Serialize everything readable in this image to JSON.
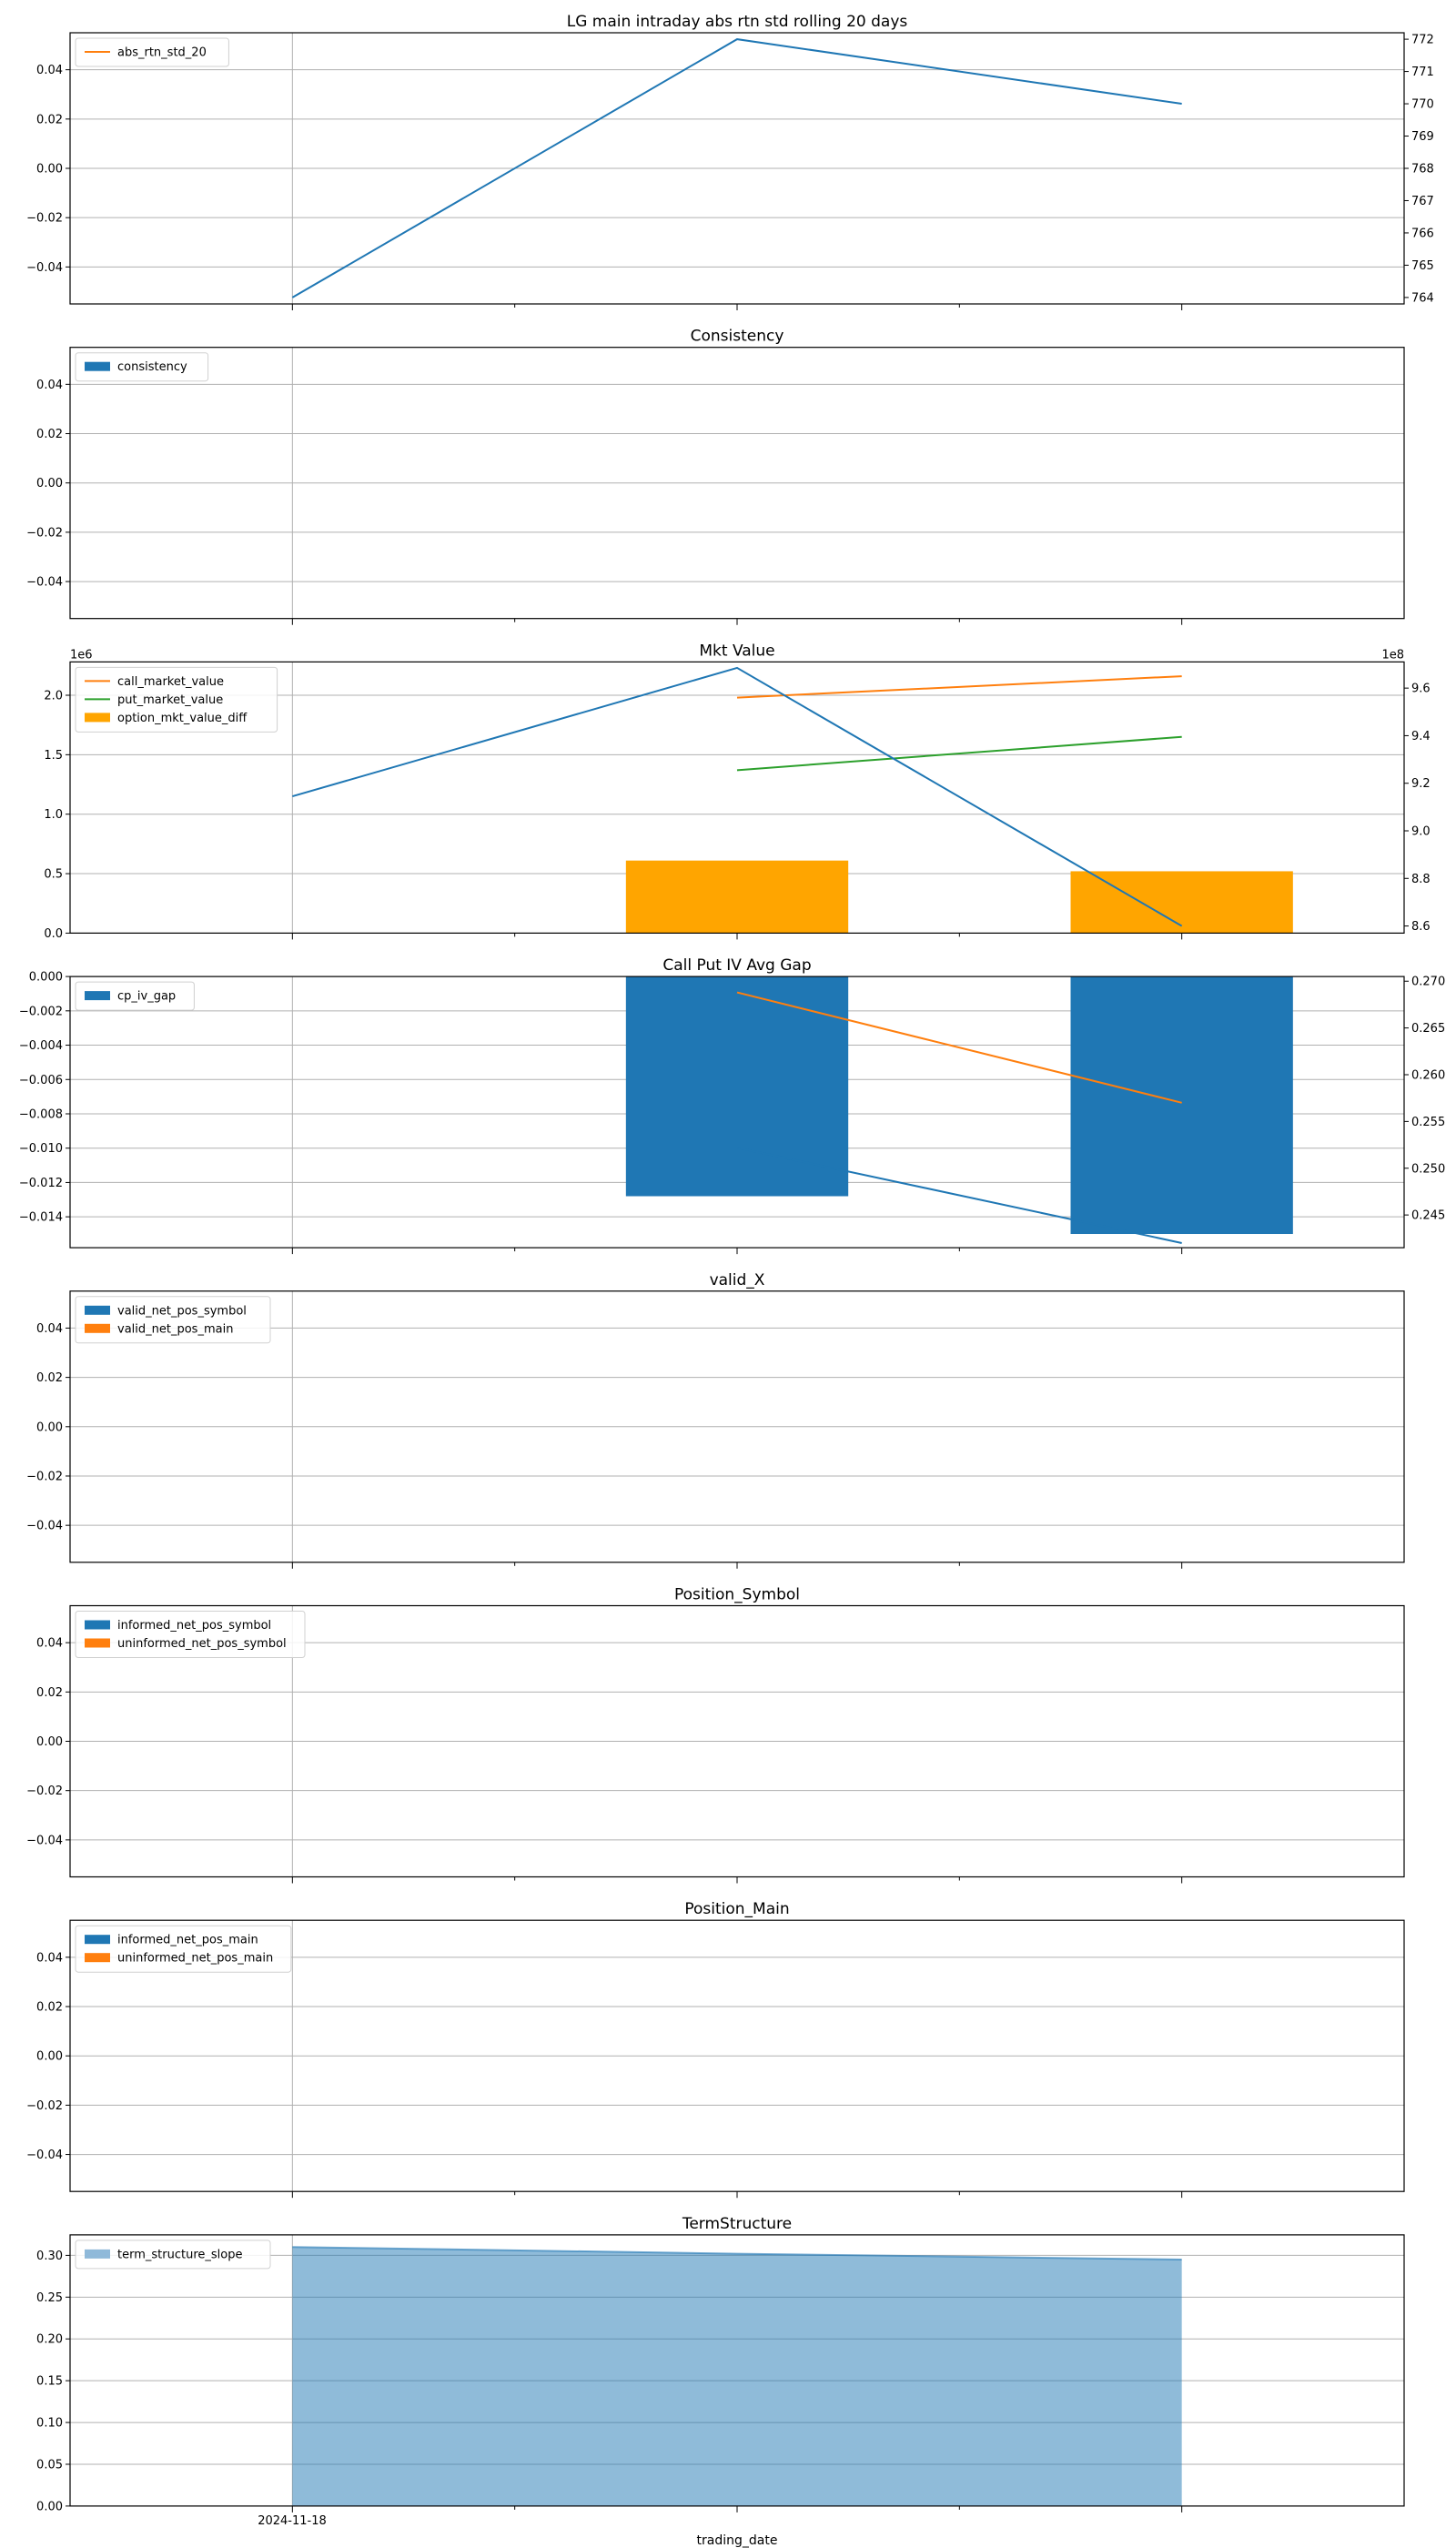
{
  "figure": {
    "xlabel": "trading_date",
    "x_tick_label": "2024-11-18"
  },
  "chart_data": [
    {
      "type": "line",
      "title": "LG main intraday abs rtn std rolling 20 days",
      "x": [
        0,
        1,
        2
      ],
      "y_left": {
        "ylim": [
          -0.055,
          0.055
        ],
        "ticks": [
          0.04,
          0.02,
          0.0,
          -0.02,
          -0.04
        ],
        "tick_labels": [
          "0.04",
          "0.02",
          "0.00",
          "−0.02",
          "−0.04"
        ]
      },
      "y_right": {
        "ylim": [
          763.8,
          772.2
        ],
        "ticks": [
          772,
          771,
          770,
          769,
          768,
          767,
          766,
          765,
          764
        ],
        "tick_labels": [
          "772",
          "771",
          "770",
          "769",
          "768",
          "767",
          "766",
          "765",
          "764"
        ]
      },
      "series": [
        {
          "name": "",
          "kind": "line",
          "axis": "right",
          "color": "#1f77b4",
          "x": [
            0,
            1,
            2
          ],
          "values": [
            764,
            772,
            770
          ]
        }
      ],
      "legend": [
        {
          "label": "abs_rtn_std_20",
          "kind": "line",
          "color": "#ff7f0e"
        }
      ],
      "legend_position": "upper left",
      "grid": true
    },
    {
      "type": "bar",
      "title": "Consistency",
      "y_left": {
        "ylim": [
          -0.055,
          0.055
        ],
        "ticks": [
          0.04,
          0.02,
          0.0,
          -0.02,
          -0.04
        ],
        "tick_labels": [
          "0.04",
          "0.02",
          "0.00",
          "−0.02",
          "−0.04"
        ]
      },
      "series": [],
      "legend": [
        {
          "label": "consistency",
          "kind": "bar",
          "color": "#1f77b4"
        }
      ],
      "legend_position": "upper left",
      "grid": true
    },
    {
      "type": "bar",
      "title": "Mkt Value",
      "y_left": {
        "ylim": [
          0,
          2.28
        ],
        "ticks": [
          2.0,
          1.5,
          1.0,
          0.5,
          0.0
        ],
        "tick_labels": [
          "2.0",
          "1.5",
          "1.0",
          "0.5",
          "0.0"
        ],
        "offset_label": "1e6"
      },
      "y_right": {
        "ylim": [
          8.57,
          9.71
        ],
        "ticks": [
          9.6,
          9.4,
          9.2,
          9.0,
          8.8,
          8.6
        ],
        "tick_labels": [
          "9.6",
          "9.4",
          "9.2",
          "9.0",
          "8.8",
          "8.6"
        ],
        "offset_label": "1e8"
      },
      "series": [
        {
          "name": "option_mkt_value_diff",
          "kind": "bar",
          "axis": "left",
          "color": "#ffa500",
          "x": [
            1,
            2
          ],
          "values": [
            0.61,
            0.52
          ]
        },
        {
          "name": "call_market_value",
          "kind": "line",
          "axis": "left",
          "color": "#ff7f0e",
          "x": [
            1,
            2
          ],
          "values": [
            1.98,
            2.16
          ]
        },
        {
          "name": "put_market_value",
          "kind": "line",
          "axis": "left",
          "color": "#2ca02c",
          "x": [
            1,
            2
          ],
          "values": [
            1.37,
            1.65
          ]
        },
        {
          "name": "",
          "kind": "line",
          "axis": "right",
          "color": "#1f77b4",
          "x": [
            0,
            1,
            2
          ],
          "values": [
            9.145,
            9.685,
            8.6
          ]
        }
      ],
      "legend": [
        {
          "label": "call_market_value",
          "kind": "line",
          "color": "#ff7f0e"
        },
        {
          "label": "put_market_value",
          "kind": "line",
          "color": "#2ca02c"
        },
        {
          "label": "option_mkt_value_diff",
          "kind": "bar",
          "color": "#ffa500"
        }
      ],
      "legend_position": "upper left",
      "grid": true
    },
    {
      "type": "bar",
      "title": "Call Put IV Avg Gap",
      "y_left": {
        "ylim": [
          -0.0158,
          0.0
        ],
        "ticks": [
          0.0,
          -0.002,
          -0.004,
          -0.006,
          -0.008,
          -0.01,
          -0.012,
          -0.014
        ],
        "tick_labels": [
          "0.000",
          "−0.002",
          "−0.004",
          "−0.006",
          "−0.008",
          "−0.010",
          "−0.012",
          "−0.014"
        ]
      },
      "y_right": {
        "ylim": [
          0.2415,
          0.2705
        ],
        "ticks": [
          0.27,
          0.265,
          0.26,
          0.255,
          0.25,
          0.245
        ],
        "tick_labels": [
          "0.270",
          "0.265",
          "0.260",
          "0.255",
          "0.250",
          "0.245"
        ]
      },
      "series": [
        {
          "name": "cp_iv_gap",
          "kind": "bar",
          "axis": "left",
          "color": "#1f77b4",
          "x": [
            1,
            2
          ],
          "values": [
            -0.0128,
            -0.015
          ]
        },
        {
          "name": "",
          "kind": "line",
          "axis": "right",
          "color": "#ff7f0e",
          "x": [
            1,
            2
          ],
          "values": [
            0.2688,
            0.257
          ]
        },
        {
          "name": "",
          "kind": "line",
          "axis": "right",
          "color": "#1f77b4",
          "x": [
            1,
            2
          ],
          "values": [
            0.2522,
            0.242
          ]
        }
      ],
      "legend": [
        {
          "label": "cp_iv_gap",
          "kind": "bar",
          "color": "#1f77b4"
        }
      ],
      "legend_position": "upper left",
      "grid": true
    },
    {
      "type": "bar",
      "title": "valid_X",
      "y_left": {
        "ylim": [
          -0.055,
          0.055
        ],
        "ticks": [
          0.04,
          0.02,
          0.0,
          -0.02,
          -0.04
        ],
        "tick_labels": [
          "0.04",
          "0.02",
          "0.00",
          "−0.02",
          "−0.04"
        ]
      },
      "series": [],
      "legend": [
        {
          "label": "valid_net_pos_symbol",
          "kind": "bar",
          "color": "#1f77b4"
        },
        {
          "label": "valid_net_pos_main",
          "kind": "bar",
          "color": "#ff7f0e"
        }
      ],
      "legend_position": "upper left",
      "grid": true
    },
    {
      "type": "bar",
      "title": "Position_Symbol",
      "y_left": {
        "ylim": [
          -0.055,
          0.055
        ],
        "ticks": [
          0.04,
          0.02,
          0.0,
          -0.02,
          -0.04
        ],
        "tick_labels": [
          "0.04",
          "0.02",
          "0.00",
          "−0.02",
          "−0.04"
        ]
      },
      "series": [],
      "legend": [
        {
          "label": "informed_net_pos_symbol",
          "kind": "bar",
          "color": "#1f77b4"
        },
        {
          "label": "uninformed_net_pos_symbol",
          "kind": "bar",
          "color": "#ff7f0e"
        }
      ],
      "legend_position": "upper left",
      "grid": true
    },
    {
      "type": "bar",
      "title": "Position_Main",
      "y_left": {
        "ylim": [
          -0.055,
          0.055
        ],
        "ticks": [
          0.04,
          0.02,
          0.0,
          -0.02,
          -0.04
        ],
        "tick_labels": [
          "0.04",
          "0.02",
          "0.00",
          "−0.02",
          "−0.04"
        ]
      },
      "series": [],
      "legend": [
        {
          "label": "informed_net_pos_main",
          "kind": "bar",
          "color": "#1f77b4"
        },
        {
          "label": "uninformed_net_pos_main",
          "kind": "bar",
          "color": "#ff7f0e"
        }
      ],
      "legend_position": "upper left",
      "grid": true
    },
    {
      "type": "area",
      "title": "TermStructure",
      "y_left": {
        "ylim": [
          0,
          0.3245
        ],
        "ticks": [
          0.3,
          0.25,
          0.2,
          0.15,
          0.1,
          0.05,
          0.0
        ],
        "tick_labels": [
          "0.30",
          "0.25",
          "0.20",
          "0.15",
          "0.10",
          "0.05",
          "0.00"
        ]
      },
      "series": [
        {
          "name": "term_structure_slope",
          "kind": "area",
          "axis": "left",
          "color": "#1f77b4",
          "x": [
            0,
            1,
            2
          ],
          "values": [
            0.31,
            0.302,
            0.295
          ]
        }
      ],
      "legend": [
        {
          "label": "term_structure_slope",
          "kind": "area",
          "color": "#8fb9d9"
        }
      ],
      "legend_position": "upper left",
      "grid": true
    }
  ]
}
